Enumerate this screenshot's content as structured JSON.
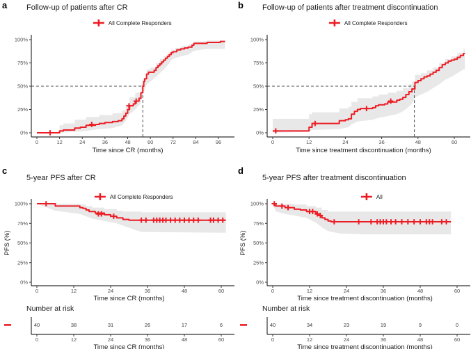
{
  "colors": {
    "curve": "#EC1C24",
    "band": "#E8E8E8",
    "dashed": "#4D4D4D",
    "axis": "#333333",
    "tick_label": "#4D4D4D",
    "text": "#1A1A1A"
  },
  "chart_data": [
    {
      "panel_label": "a",
      "type": "line",
      "title": "Follow-up of patients after CR",
      "legend": "All Complete Responders",
      "xlabel": "Time since CR (months)",
      "ylabel": "",
      "xticks": [
        0,
        12,
        24,
        36,
        48,
        60,
        72,
        84,
        96
      ],
      "ytick_values": [
        0,
        25,
        50,
        75,
        100
      ],
      "ytick_labels": [
        "0%",
        "25%",
        "50%",
        "75%",
        "100%"
      ],
      "xlim": [
        0,
        99.5
      ],
      "ylim": [
        0,
        100
      ],
      "median_x": 56,
      "median_y": 50,
      "xend": 99.5,
      "steps": [
        [
          0,
          0
        ],
        [
          12,
          2
        ],
        [
          14,
          3
        ],
        [
          20,
          5
        ],
        [
          23,
          6
        ],
        [
          26,
          8
        ],
        [
          31,
          9
        ],
        [
          33,
          10
        ],
        [
          36,
          11
        ],
        [
          40,
          12
        ],
        [
          43,
          13
        ],
        [
          45,
          15
        ],
        [
          46,
          18
        ],
        [
          47,
          21
        ],
        [
          48,
          25
        ],
        [
          49,
          29
        ],
        [
          51,
          31
        ],
        [
          52,
          34
        ],
        [
          54,
          37
        ],
        [
          55,
          43
        ],
        [
          56,
          50
        ],
        [
          56.5,
          55
        ],
        [
          57,
          58
        ],
        [
          58,
          63
        ],
        [
          59,
          65
        ],
        [
          62,
          67
        ],
        [
          63,
          70
        ],
        [
          64,
          72
        ],
        [
          65,
          74
        ],
        [
          66,
          76
        ],
        [
          67,
          78
        ],
        [
          68,
          80
        ],
        [
          69,
          82
        ],
        [
          70,
          84
        ],
        [
          71,
          86
        ],
        [
          72,
          87
        ],
        [
          74,
          89
        ],
        [
          76,
          90
        ],
        [
          78,
          91
        ],
        [
          80,
          92
        ],
        [
          82,
          94
        ],
        [
          83,
          96
        ],
        [
          90,
          97
        ],
        [
          97,
          98
        ]
      ],
      "censors": [
        [
          7,
          0
        ],
        [
          29,
          9
        ],
        [
          48.7,
          29
        ],
        [
          52.5,
          34
        ]
      ],
      "band_upper": [
        [
          0,
          0
        ],
        [
          12,
          8
        ],
        [
          14,
          10
        ],
        [
          20,
          14
        ],
        [
          26,
          17
        ],
        [
          33,
          19
        ],
        [
          40,
          21
        ],
        [
          45,
          24
        ],
        [
          47,
          30
        ],
        [
          49,
          38
        ],
        [
          52,
          43
        ],
        [
          55,
          52
        ],
        [
          56,
          58
        ],
        [
          58,
          68
        ],
        [
          60,
          70
        ],
        [
          63,
          75
        ],
        [
          65,
          79
        ],
        [
          67,
          82
        ],
        [
          69,
          85
        ],
        [
          71,
          89
        ],
        [
          73,
          91
        ],
        [
          76,
          93
        ],
        [
          80,
          95
        ],
        [
          83,
          98
        ],
        [
          90,
          99
        ]
      ],
      "band_lower": [
        [
          0,
          0
        ],
        [
          12,
          0
        ],
        [
          20,
          1
        ],
        [
          26,
          2
        ],
        [
          33,
          4
        ],
        [
          40,
          5
        ],
        [
          45,
          8
        ],
        [
          47,
          13
        ],
        [
          49,
          20
        ],
        [
          52,
          25
        ],
        [
          55,
          32
        ],
        [
          56,
          41
        ],
        [
          58,
          52
        ],
        [
          60,
          55
        ],
        [
          63,
          60
        ],
        [
          65,
          64
        ],
        [
          67,
          68
        ],
        [
          69,
          72
        ],
        [
          71,
          78
        ],
        [
          73,
          80
        ],
        [
          76,
          82
        ],
        [
          80,
          84
        ],
        [
          83,
          88
        ],
        [
          90,
          90
        ]
      ]
    },
    {
      "panel_label": "b",
      "type": "line",
      "title": "Follow-up of patients after treatment discontinuation",
      "legend": "All Complete Responders",
      "xlabel": "Time since treatment discontinuation (months)",
      "ylabel": "",
      "xticks": [
        0,
        12,
        24,
        36,
        48,
        60
      ],
      "ytick_values": [
        0,
        25,
        50,
        75,
        100
      ],
      "ytick_labels": [
        "0%",
        "25%",
        "50%",
        "75%",
        "100%"
      ],
      "xlim": [
        0,
        63.5
      ],
      "ylim": [
        0,
        100
      ],
      "median_x": 46.8,
      "median_y": 50,
      "xend": 63.5,
      "steps": [
        [
          0,
          2
        ],
        [
          12,
          6
        ],
        [
          13,
          10
        ],
        [
          22,
          13
        ],
        [
          24,
          14
        ],
        [
          25,
          15
        ],
        [
          26,
          20
        ],
        [
          27,
          23
        ],
        [
          28,
          25
        ],
        [
          29,
          26
        ],
        [
          33,
          27
        ],
        [
          34,
          29
        ],
        [
          35,
          30
        ],
        [
          37,
          31
        ],
        [
          38,
          33
        ],
        [
          41,
          35
        ],
        [
          42,
          36
        ],
        [
          43,
          38
        ],
        [
          44,
          41
        ],
        [
          45,
          44
        ],
        [
          46,
          47
        ],
        [
          47,
          54
        ],
        [
          48,
          56
        ],
        [
          49,
          58
        ],
        [
          50,
          60
        ],
        [
          51,
          61
        ],
        [
          52,
          63
        ],
        [
          53,
          65
        ],
        [
          54,
          67
        ],
        [
          55,
          70
        ],
        [
          56,
          73
        ],
        [
          57,
          75
        ],
        [
          58,
          77
        ],
        [
          59,
          78
        ],
        [
          60,
          79
        ],
        [
          61,
          81
        ],
        [
          62,
          83
        ],
        [
          63,
          85
        ]
      ],
      "censors": [
        [
          1,
          2
        ],
        [
          14,
          10
        ],
        [
          31,
          26
        ],
        [
          39,
          34
        ]
      ],
      "band_upper": [
        [
          0,
          15
        ],
        [
          12,
          20
        ],
        [
          13,
          22
        ],
        [
          22,
          26
        ],
        [
          25,
          28
        ],
        [
          26,
          33
        ],
        [
          28,
          37
        ],
        [
          33,
          39
        ],
        [
          35,
          41
        ],
        [
          38,
          43
        ],
        [
          41,
          45
        ],
        [
          43,
          48
        ],
        [
          45,
          52
        ],
        [
          46,
          55
        ],
        [
          47,
          62
        ],
        [
          49,
          64
        ],
        [
          51,
          67
        ],
        [
          53,
          70
        ],
        [
          55,
          75
        ],
        [
          57,
          79
        ],
        [
          59,
          82
        ],
        [
          61,
          86
        ],
        [
          63,
          90
        ]
      ],
      "band_lower": [
        [
          0,
          0
        ],
        [
          12,
          1
        ],
        [
          13,
          3
        ],
        [
          22,
          4
        ],
        [
          25,
          6
        ],
        [
          26,
          9
        ],
        [
          28,
          12
        ],
        [
          33,
          14
        ],
        [
          35,
          16
        ],
        [
          38,
          18
        ],
        [
          41,
          20
        ],
        [
          43,
          23
        ],
        [
          45,
          28
        ],
        [
          46,
          31
        ],
        [
          47,
          38
        ],
        [
          49,
          41
        ],
        [
          51,
          44
        ],
        [
          53,
          48
        ],
        [
          55,
          52
        ],
        [
          57,
          57
        ],
        [
          59,
          60
        ],
        [
          61,
          64
        ],
        [
          63,
          68
        ]
      ]
    },
    {
      "panel_label": "c",
      "type": "line",
      "title": "5-year PFS after CR",
      "legend": "All Complete Responders",
      "xlabel": "Time since CR (months)",
      "ylabel": "PFS (%)",
      "xticks": [
        0,
        12,
        24,
        36,
        48,
        60
      ],
      "ytick_values": [
        0,
        25,
        50,
        75,
        100
      ],
      "ytick_labels": [
        "0%",
        "25%",
        "50%",
        "75%",
        "100%"
      ],
      "xlim": [
        0,
        61.5
      ],
      "ylim": [
        0,
        100
      ],
      "xend": 61.5,
      "steps": [
        [
          0,
          100
        ],
        [
          6,
          97
        ],
        [
          14,
          95
        ],
        [
          15,
          94
        ],
        [
          16,
          92
        ],
        [
          17,
          90
        ],
        [
          19,
          88
        ],
        [
          22,
          86
        ],
        [
          24,
          84
        ],
        [
          26,
          82
        ],
        [
          28,
          80
        ],
        [
          30,
          79
        ]
      ],
      "censors": [
        [
          3,
          100
        ],
        [
          20,
          87
        ],
        [
          21,
          87
        ],
        [
          25,
          84
        ],
        [
          34,
          79
        ],
        [
          35.5,
          79
        ],
        [
          38,
          79
        ],
        [
          39,
          79
        ],
        [
          40,
          79
        ],
        [
          41,
          79
        ],
        [
          42,
          79
        ],
        [
          43.5,
          79
        ],
        [
          45,
          79
        ],
        [
          46.5,
          79
        ],
        [
          48,
          79
        ],
        [
          49.5,
          79
        ],
        [
          51,
          79
        ],
        [
          52.5,
          79
        ],
        [
          56.5,
          79
        ],
        [
          57.5,
          79
        ],
        [
          59,
          79
        ],
        [
          60.5,
          79
        ]
      ],
      "band_upper": [
        [
          0,
          100
        ],
        [
          6,
          100
        ],
        [
          14,
          99
        ],
        [
          16,
          97
        ],
        [
          18,
          95
        ],
        [
          22,
          93
        ],
        [
          26,
          91
        ],
        [
          28,
          90
        ],
        [
          34,
          89
        ],
        [
          60.5,
          89
        ]
      ],
      "band_lower": [
        [
          0,
          100
        ],
        [
          6,
          91
        ],
        [
          14,
          87
        ],
        [
          16,
          84
        ],
        [
          18,
          81
        ],
        [
          22,
          78
        ],
        [
          26,
          75
        ],
        [
          28,
          72
        ],
        [
          34,
          64
        ],
        [
          60.5,
          63
        ]
      ],
      "risk": {
        "heading": "Number at risk",
        "times": [
          0,
          12,
          24,
          36,
          48,
          60
        ],
        "values": [
          "40",
          "38",
          "31",
          "26",
          "17",
          "6"
        ],
        "xlabel": "Time since CR (months)"
      }
    },
    {
      "panel_label": "d",
      "type": "line",
      "title": "5-year PFS after treatment discontinuation",
      "legend": "All",
      "xlabel": "Time since treatment discontinuation (months)",
      "ylabel": "PFS (%)",
      "xticks": [
        0,
        12,
        24,
        36,
        48,
        60
      ],
      "ytick_values": [
        0,
        25,
        50,
        75,
        100
      ],
      "ytick_labels": [
        "0%",
        "25%",
        "50%",
        "75%",
        "100%"
      ],
      "xlim": [
        0,
        58
      ],
      "ylim": [
        0,
        100
      ],
      "xend": 58,
      "steps": [
        [
          0,
          100
        ],
        [
          1,
          97
        ],
        [
          4,
          95
        ],
        [
          7,
          93
        ],
        [
          9,
          92
        ],
        [
          11,
          90
        ],
        [
          14,
          87
        ],
        [
          15,
          85
        ],
        [
          16,
          82
        ],
        [
          17,
          80
        ],
        [
          18,
          78
        ],
        [
          19,
          77
        ]
      ],
      "censors": [
        [
          0.5,
          100
        ],
        [
          3,
          97
        ],
        [
          5,
          95
        ],
        [
          12,
          90
        ],
        [
          13,
          90
        ],
        [
          14.5,
          87
        ],
        [
          15.5,
          85
        ],
        [
          20,
          77
        ],
        [
          28,
          77
        ],
        [
          32,
          77
        ],
        [
          34,
          77
        ],
        [
          35,
          77
        ],
        [
          36,
          77
        ],
        [
          37,
          77
        ],
        [
          38.5,
          77
        ],
        [
          40,
          77
        ],
        [
          42,
          77
        ],
        [
          44,
          77
        ],
        [
          46,
          77
        ],
        [
          48,
          77
        ],
        [
          50,
          77
        ],
        [
          51,
          77
        ],
        [
          52,
          77
        ],
        [
          55,
          77
        ],
        [
          56.5,
          77
        ]
      ],
      "band_upper": [
        [
          0,
          100
        ],
        [
          1,
          100
        ],
        [
          7,
          99
        ],
        [
          11,
          97
        ],
        [
          14,
          95
        ],
        [
          16,
          92
        ],
        [
          18,
          90
        ],
        [
          22,
          90
        ],
        [
          58,
          90
        ]
      ],
      "band_lower": [
        [
          0,
          100
        ],
        [
          1,
          90
        ],
        [
          4,
          87
        ],
        [
          7,
          85
        ],
        [
          11,
          82
        ],
        [
          14,
          76
        ],
        [
          16,
          70
        ],
        [
          18,
          65
        ],
        [
          22,
          62
        ],
        [
          30,
          61
        ],
        [
          58,
          61
        ]
      ],
      "risk": {
        "heading": "Number at risk",
        "times": [
          0,
          12,
          24,
          36,
          48,
          60
        ],
        "values": [
          "40",
          "34",
          "23",
          "19",
          "9",
          "0"
        ],
        "xlabel": "Time since treatment discontinuation (months)"
      }
    }
  ]
}
